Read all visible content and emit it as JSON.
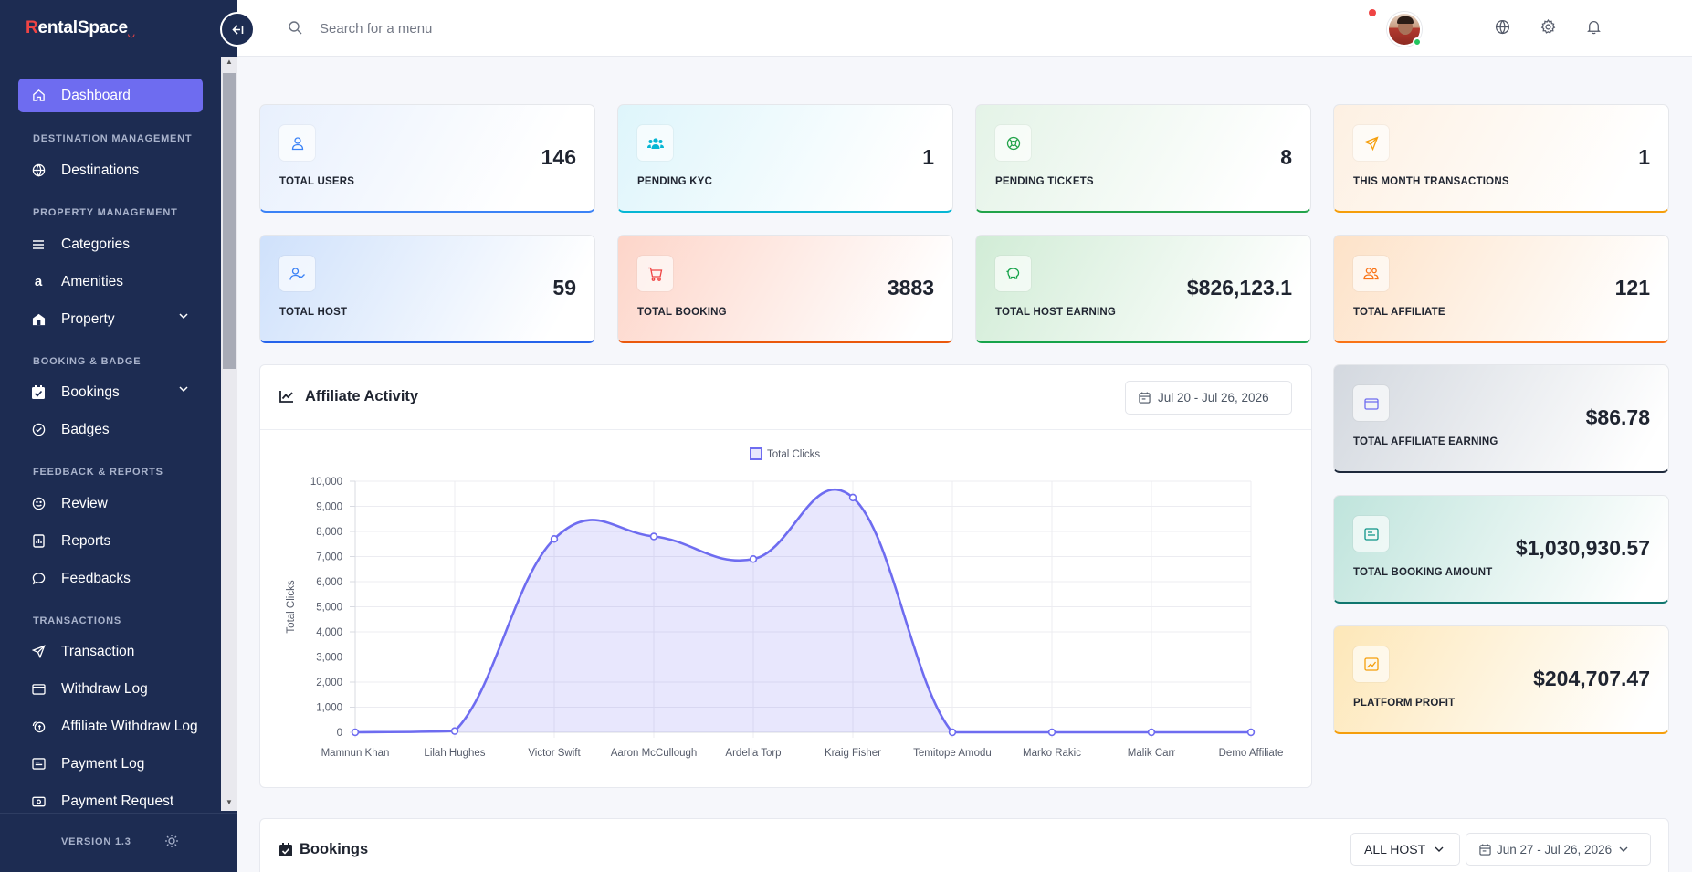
{
  "app": {
    "logo_first": "R",
    "logo_rest": "entalSpace"
  },
  "sidebar": {
    "items": [
      {
        "label": "Dashboard"
      },
      {
        "label": "Destinations"
      },
      {
        "label": "Categories"
      },
      {
        "label": "Amenities"
      },
      {
        "label": "Property"
      },
      {
        "label": "Bookings"
      },
      {
        "label": "Badges"
      },
      {
        "label": "Review"
      },
      {
        "label": "Reports"
      },
      {
        "label": "Feedbacks"
      },
      {
        "label": "Transaction"
      },
      {
        "label": "Withdraw Log"
      },
      {
        "label": "Affiliate Withdraw Log"
      },
      {
        "label": "Payment Log"
      },
      {
        "label": "Payment Request"
      }
    ],
    "sections": [
      "DESTINATION MANAGEMENT",
      "PROPERTY MANAGEMENT",
      "BOOKING & BADGE",
      "FEEDBACK & REPORTS",
      "TRANSACTIONS"
    ],
    "version": "VERSION 1.3"
  },
  "search": {
    "placeholder": "Search for a menu"
  },
  "stats": [
    {
      "label": "TOTAL USERS",
      "value": "146"
    },
    {
      "label": "PENDING KYC",
      "value": "1"
    },
    {
      "label": "PENDING TICKETS",
      "value": "8"
    },
    {
      "label": "THIS MONTH TRANSACTIONS",
      "value": "1"
    },
    {
      "label": "TOTAL HOST",
      "value": "59"
    },
    {
      "label": "TOTAL BOOKING",
      "value": "3883"
    },
    {
      "label": "TOTAL HOST EARNING",
      "value": "$826,123.1"
    },
    {
      "label": "TOTAL AFFILIATE",
      "value": "121"
    },
    {
      "label": "TOTAL AFFILIATE EARNING",
      "value": "$86.78"
    },
    {
      "label": "TOTAL BOOKING AMOUNT",
      "value": "$1,030,930.57"
    },
    {
      "label": "PLATFORM PROFIT",
      "value": "$204,707.47"
    }
  ],
  "affiliate_panel": {
    "title": "Affiliate Activity",
    "date_range": "Jul 20 - Jul 26, 2026"
  },
  "chart_data": {
    "type": "line",
    "categories": [
      "Mamnun Khan",
      "Lilah Hughes",
      "Victor Swift",
      "Aaron McCullough",
      "Ardella Torp",
      "Kraig Fisher",
      "Temitope Amodu",
      "Marko Rakic",
      "Malik Carr",
      "Demo Affiliate"
    ],
    "series": [
      {
        "name": "Total Clicks",
        "values": [
          0,
          50,
          7700,
          7800,
          6900,
          9350,
          0,
          0,
          0,
          0
        ],
        "color": "#6e6cf0"
      }
    ],
    "xlabel": "",
    "ylabel": "Total Clicks",
    "ylim": [
      0,
      10000
    ],
    "yticks": [
      "0",
      "1,000",
      "2,000",
      "3,000",
      "4,000",
      "5,000",
      "6,000",
      "7,000",
      "8,000",
      "9,000",
      "10,000"
    ],
    "grid": true,
    "legend": "top-center",
    "filled": true
  },
  "bookings_panel": {
    "title": "Bookings",
    "host_filter": "ALL HOST",
    "date_range": "Jun 27 - Jul 26, 2026"
  }
}
